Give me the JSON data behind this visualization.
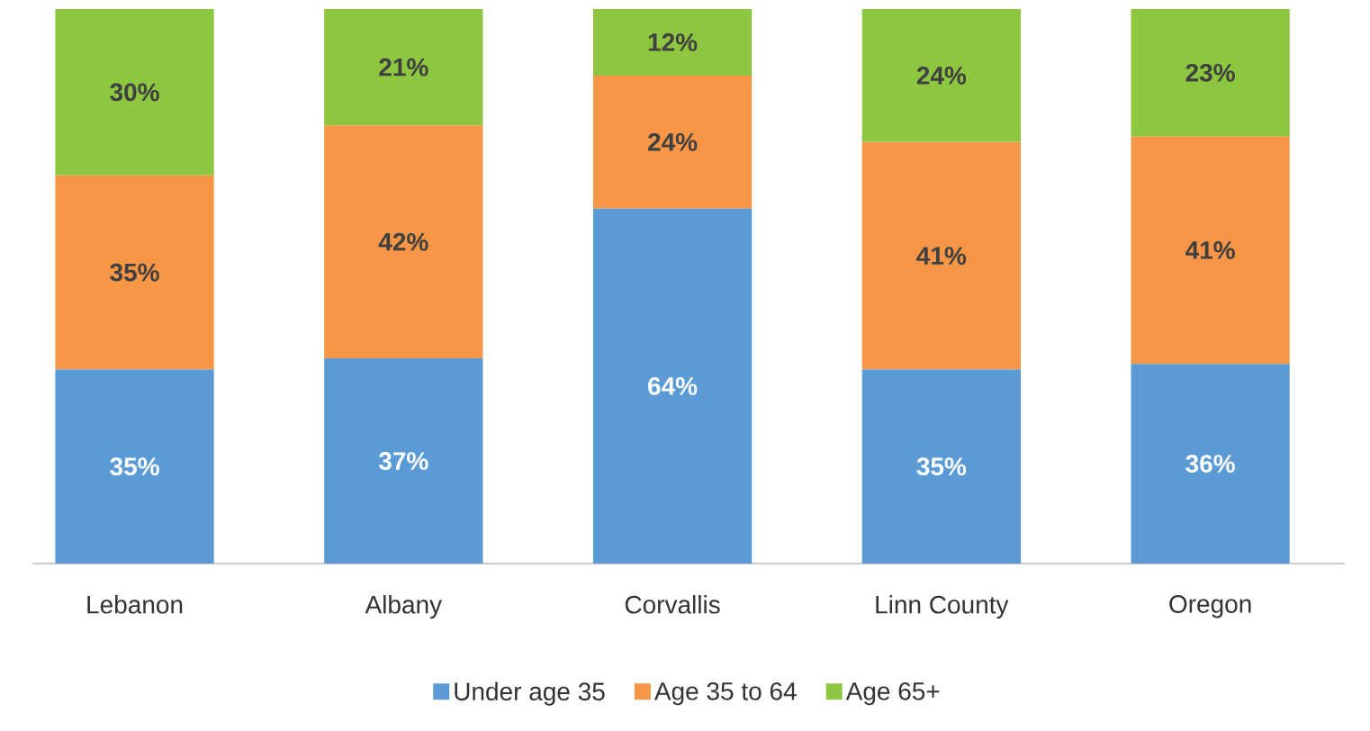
{
  "chart_data": {
    "type": "bar",
    "stacked": true,
    "legend": "bottom",
    "categories": [
      "Lebanon",
      "Albany",
      "Corvallis",
      "Linn County",
      "Oregon"
    ],
    "series": [
      {
        "name": "Under age 35",
        "color": "#5b9bd5",
        "values": [
          35,
          37,
          64,
          35,
          36
        ],
        "value_labels": [
          "35%",
          "37%",
          "64%",
          "35%",
          "36%"
        ]
      },
      {
        "name": "Age 35 to 64",
        "color": "#f79646",
        "values": [
          35,
          42,
          24,
          41,
          41
        ],
        "value_labels": [
          "35%",
          "42%",
          "24%",
          "41%",
          "41%"
        ]
      },
      {
        "name": "Age 65+",
        "color": "#8dc63f",
        "values": [
          30,
          21,
          12,
          24,
          23
        ],
        "value_labels": [
          "30%",
          "21%",
          "12%",
          "24%",
          "23%"
        ]
      }
    ]
  }
}
